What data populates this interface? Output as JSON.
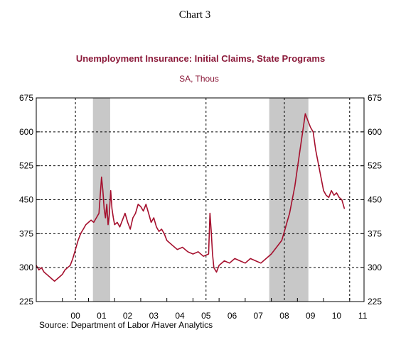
{
  "heading": "Chart 3",
  "source": "Source:  Department of Labor /Haver Analytics",
  "colors": {
    "line": "#a50f2d",
    "title": "#8b1a3a",
    "recession": "#c8c8c8",
    "grid": "#000000"
  },
  "chart_data": {
    "type": "line",
    "title": "Unemployment Insurance: Initial Claims, State Programs",
    "subtitle": "SA, Thous",
    "ylim": [
      225,
      675
    ],
    "yticks": [
      225,
      300,
      375,
      450,
      525,
      600,
      675
    ],
    "xlim": [
      1999.0,
      2011.55
    ],
    "xtick_labels": [
      {
        "label": "00",
        "x": 2000.0
      },
      {
        "label": "01",
        "x": 2001.0
      },
      {
        "label": "02",
        "x": 2002.0
      },
      {
        "label": "03",
        "x": 2003.0
      },
      {
        "label": "04",
        "x": 2004.0
      },
      {
        "label": "05",
        "x": 2005.0
      },
      {
        "label": "06",
        "x": 2006.0
      },
      {
        "label": "07",
        "x": 2007.0
      },
      {
        "label": "08",
        "x": 2008.0
      },
      {
        "label": "09",
        "x": 2009.0
      },
      {
        "label": "10",
        "x": 2010.0
      },
      {
        "label": "11",
        "x": 2011.0
      }
    ],
    "vertical_gridlines": [
      2000.5,
      2005.5,
      2008.5,
      2011.0
    ],
    "recessions": [
      [
        2001.17,
        2001.83
      ],
      [
        2007.92,
        2009.42
      ]
    ],
    "series": [
      {
        "x": [
          1999.0,
          1999.1,
          1999.2,
          1999.3,
          1999.4,
          1999.5,
          1999.6,
          1999.7,
          1999.8,
          1999.9,
          2000.0,
          2000.1,
          2000.2,
          2000.3,
          2000.4,
          2000.5,
          2000.6,
          2000.7,
          2000.8,
          2000.9,
          2001.0,
          2001.1,
          2001.2,
          2001.3,
          2001.4,
          2001.5,
          2001.55,
          2001.6,
          2001.65,
          2001.7,
          2001.75,
          2001.8,
          2001.85,
          2001.9,
          2001.95,
          2002.0,
          2002.1,
          2002.2,
          2002.3,
          2002.4,
          2002.5,
          2002.6,
          2002.7,
          2002.8,
          2002.9,
          2003.0,
          2003.1,
          2003.2,
          2003.3,
          2003.4,
          2003.5,
          2003.6,
          2003.7,
          2003.8,
          2003.9,
          2004.0,
          2004.2,
          2004.4,
          2004.6,
          2004.8,
          2005.0,
          2005.2,
          2005.4,
          2005.6,
          2005.65,
          2005.7,
          2005.75,
          2005.8,
          2005.9,
          2006.0,
          2006.2,
          2006.4,
          2006.6,
          2006.8,
          2007.0,
          2007.2,
          2007.4,
          2007.6,
          2007.8,
          2008.0,
          2008.2,
          2008.4,
          2008.5,
          2008.6,
          2008.7,
          2008.8,
          2008.9,
          2009.0,
          2009.1,
          2009.2,
          2009.3,
          2009.4,
          2009.5,
          2009.6,
          2009.7,
          2009.8,
          2009.9,
          2010.0,
          2010.1,
          2010.2,
          2010.3,
          2010.4,
          2010.5,
          2010.6,
          2010.7,
          2010.8
        ],
        "y": [
          305,
          295,
          300,
          290,
          285,
          280,
          275,
          270,
          275,
          280,
          285,
          295,
          300,
          305,
          320,
          340,
          360,
          375,
          385,
          395,
          400,
          405,
          400,
          410,
          420,
          500,
          470,
          430,
          410,
          440,
          395,
          420,
          470,
          430,
          410,
          395,
          400,
          390,
          405,
          420,
          400,
          385,
          410,
          420,
          440,
          435,
          425,
          440,
          420,
          400,
          410,
          390,
          380,
          385,
          375,
          360,
          350,
          340,
          345,
          335,
          330,
          335,
          325,
          330,
          420,
          380,
          330,
          300,
          290,
          305,
          315,
          310,
          320,
          315,
          310,
          320,
          315,
          310,
          320,
          330,
          345,
          360,
          380,
          400,
          420,
          450,
          480,
          520,
          560,
          600,
          640,
          625,
          610,
          600,
          560,
          530,
          500,
          470,
          460,
          455,
          470,
          460,
          465,
          455,
          450,
          430
        ]
      }
    ]
  }
}
